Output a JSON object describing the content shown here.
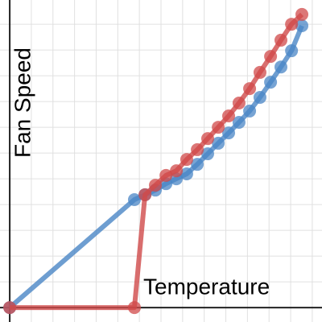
{
  "chart_data": {
    "type": "line",
    "x_label": "Temperature",
    "y_label": "Fan Speed",
    "x": [
      0,
      5.77,
      6.26,
      6.74,
      7.23,
      7.71,
      8.19,
      8.68,
      9.16,
      9.65,
      10.13,
      10.61,
      11.1,
      11.58,
      12.07,
      12.55,
      13.04,
      13.52
    ],
    "series": [
      {
        "color": "#4a86c5",
        "values": [
          0,
          4.19,
          4.38,
          4.56,
          4.81,
          5,
          5.19,
          5.56,
          5.97,
          6.38,
          6.78,
          7.19,
          7.63,
          8.16,
          8.75,
          9.34,
          9.97,
          10.94
        ]
      },
      {
        "color": "#d04a4a",
        "values": [
          0,
          0,
          4.38,
          4.75,
          5.13,
          5.31,
          5.75,
          6.13,
          6.56,
          7,
          7.44,
          7.94,
          8.5,
          9.13,
          9.75,
          10.38,
          11,
          11.38
        ]
      }
    ],
    "xlim": [
      -0.45,
      14.45
    ],
    "ylim": [
      -0.56,
      11.94
    ],
    "xticks": [
      0,
      1,
      2,
      3,
      4,
      5,
      6,
      7,
      8,
      9,
      10,
      11,
      12,
      13,
      14
    ],
    "yticks": [
      0,
      1,
      2,
      3,
      4,
      5,
      6,
      7,
      8,
      9,
      10,
      11
    ],
    "grid": true
  }
}
